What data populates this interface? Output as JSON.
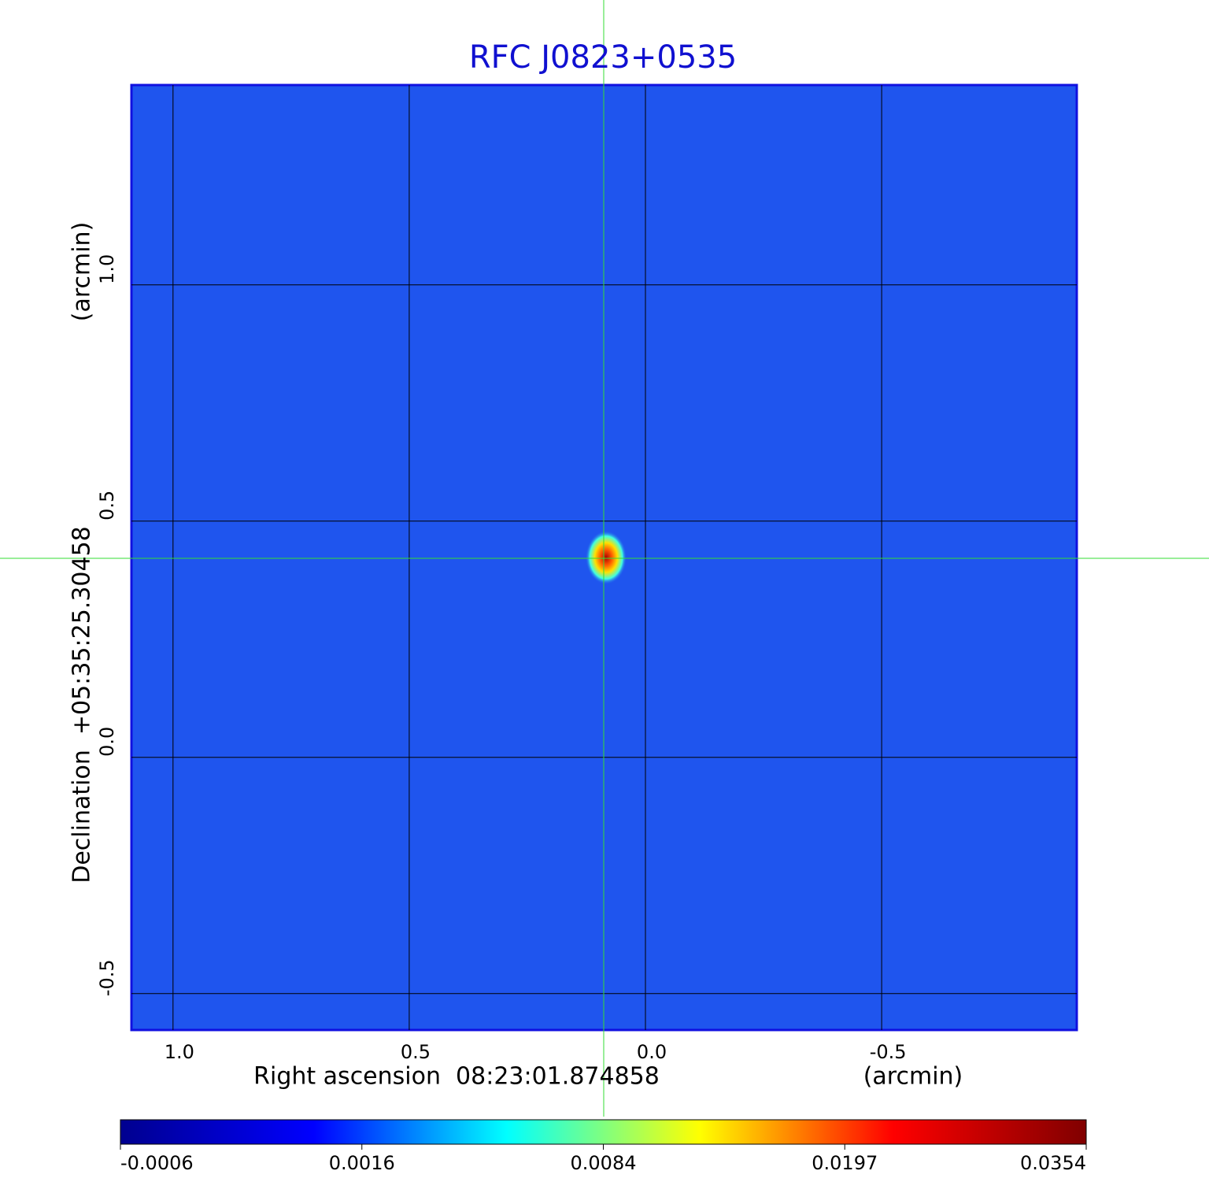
{
  "chart_data": {
    "type": "image",
    "title": "RFC J0823+0535",
    "x_label": "Right ascension  08:23:01.874858",
    "x_unit": "(arcmin)",
    "y_label": "Declination  +05:35:25.30458",
    "y_unit": "(arcmin)",
    "xlim": [
      1.088,
      -0.913
    ],
    "ylim": [
      -0.577,
      1.423
    ],
    "xticks": [
      {
        "value": 1,
        "label": "1.0"
      },
      0.5,
      {
        "value": 0,
        "label": "0.0"
      },
      -0.5
    ],
    "yticks": [
      -0.5,
      {
        "value": 0,
        "label": "0.0"
      },
      0.5,
      {
        "value": 1,
        "label": "1.0"
      }
    ],
    "grid": true,
    "colormap": [
      "#00008f",
      "#0000ff",
      "#00ffff",
      "#ffff00",
      "#ff0000",
      "#800000"
    ],
    "colorbar_ticks": [
      -0.0006,
      0.0016,
      0.0084,
      0.0197,
      0.0354
    ]
  }
}
